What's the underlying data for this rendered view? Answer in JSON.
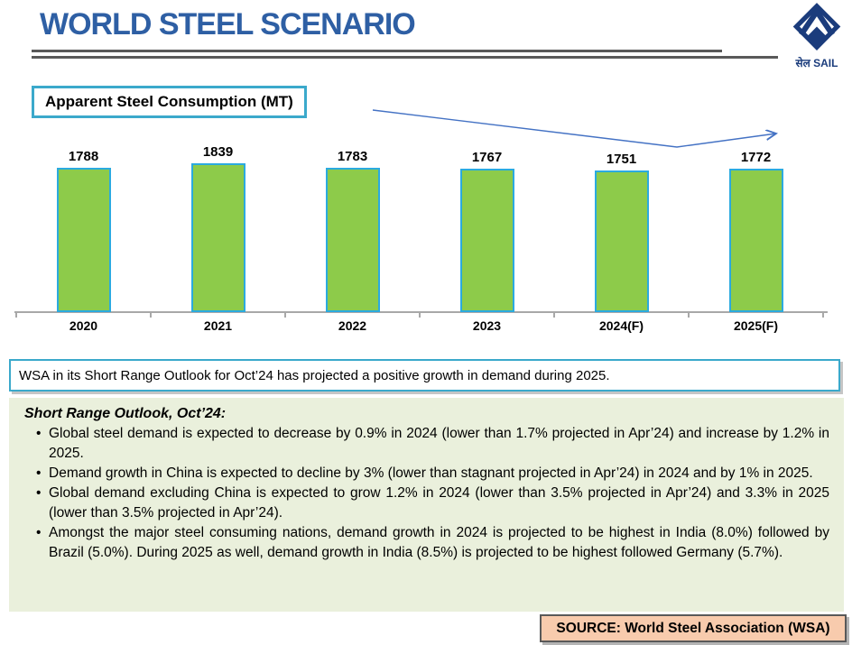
{
  "header": {
    "title": "WORLD STEEL SCENARIO",
    "logo_caption": "सेल SAIL"
  },
  "chart_data": {
    "type": "bar",
    "title": "Apparent Steel Consumption (MT)",
    "categories": [
      "2020",
      "2021",
      "2022",
      "2023",
      "2024(F)",
      "2025(F)"
    ],
    "values": [
      1788,
      1839,
      1783,
      1767,
      1751,
      1772
    ],
    "xlabel": "",
    "ylabel": "",
    "ylim": [
      0,
      1900
    ],
    "grid": false,
    "legend": false,
    "value_labels_shown": true,
    "annotations": [
      "downward-then-upward trend arrow over 2022 to 2025(F)"
    ]
  },
  "callout": {
    "text": "WSA in its Short Range Outlook for Oct’24 has projected a positive growth in demand during 2025."
  },
  "outlook": {
    "heading": "Short Range Outlook, Oct’24:",
    "bullets": [
      "Global steel demand is expected to decrease by 0.9% in 2024 (lower than 1.7% projected in Apr’24) and increase by 1.2% in 2025.",
      "Demand growth in China is expected to decline by 3% (lower than stagnant projected in Apr’24) in 2024 and by 1% in 2025.",
      "Global demand excluding China is expected to grow 1.2% in 2024 (lower than 3.5% projected in Apr’24) and 3.3% in 2025 (lower than 3.5% projected in Apr’24).",
      "Amongst the major steel consuming nations, demand growth in 2024 is projected to be highest in India (8.0%) followed by Brazil (5.0%). During 2025 as well, demand growth in India (8.5%) is projected to be highest followed Germany (5.7%)."
    ]
  },
  "source": {
    "label": "SOURCE: World Steel Association (WSA)"
  },
  "colors": {
    "title_blue": "#2E5FA4",
    "rule_gray": "#595959",
    "accent_teal": "#3BA9CB",
    "bar_green": "#8DCB4A",
    "bar_border": "#2BAADF",
    "axis_gray": "#A8A8A8",
    "trend_line": "#4472C4",
    "outlook_bg": "#EAF0DC",
    "source_bg": "#F8CBAD",
    "logo_navy": "#1B3C7C"
  }
}
